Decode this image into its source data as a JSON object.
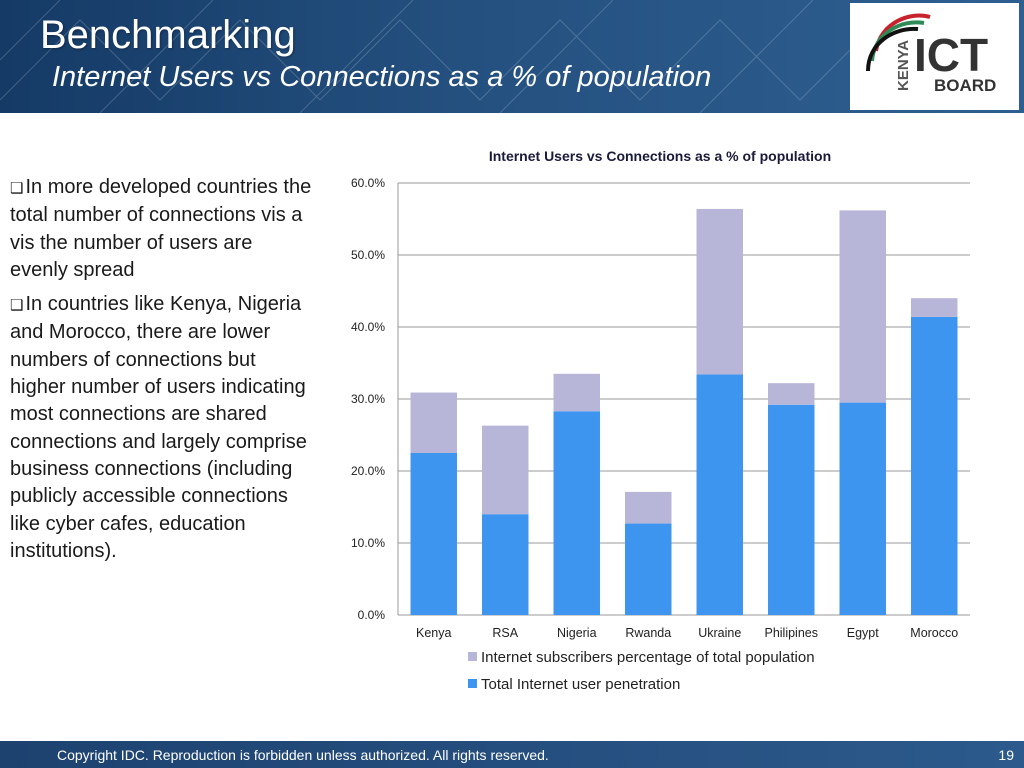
{
  "slide": {
    "title": "Benchmarking",
    "subtitle": "Internet Users vs Connections as a % of population",
    "logo": {
      "kenya": "KENYA",
      "ict": "ICT",
      "board": "BOARD"
    },
    "bullets": [
      "In more developed countries  the total number of connections vis a vis the number of users are evenly spread",
      "In countries like Kenya, Nigeria and Morocco,  there are lower numbers of connections  but  higher number of users indicating most connections are shared connections and largely comprise business connections (including publicly accessible connections like cyber cafes, education institutions)."
    ],
    "footer": {
      "copyright": "Copyright IDC. Reproduction is forbidden unless authorized. All rights reserved.",
      "page": "19"
    }
  },
  "colors": {
    "users": "#3d95f0",
    "subscribers": "#b7b6d8",
    "header": "#1f4778"
  },
  "chart_data": {
    "type": "bar",
    "stacked": true,
    "title": "Internet Users vs Connections as a % of  population",
    "categories": [
      "Kenya",
      "RSA",
      "Nigeria",
      "Rwanda",
      "Ukraine",
      "Philipines",
      "Egypt",
      "Morocco"
    ],
    "series": [
      {
        "name": "Total Internet user penetration",
        "values": [
          22.5,
          14.0,
          28.3,
          12.7,
          33.4,
          29.2,
          29.5,
          41.4
        ]
      },
      {
        "name": "Internet subscribers percentage of total population",
        "values": [
          8.4,
          12.3,
          5.2,
          4.4,
          23.0,
          3.0,
          26.7,
          2.6
        ]
      }
    ],
    "ylim": [
      0,
      60
    ],
    "yticks": [
      "0.0%",
      "10.0%",
      "20.0%",
      "30.0%",
      "40.0%",
      "50.0%",
      "60.0%"
    ],
    "grid": true,
    "legend": "bottom"
  }
}
